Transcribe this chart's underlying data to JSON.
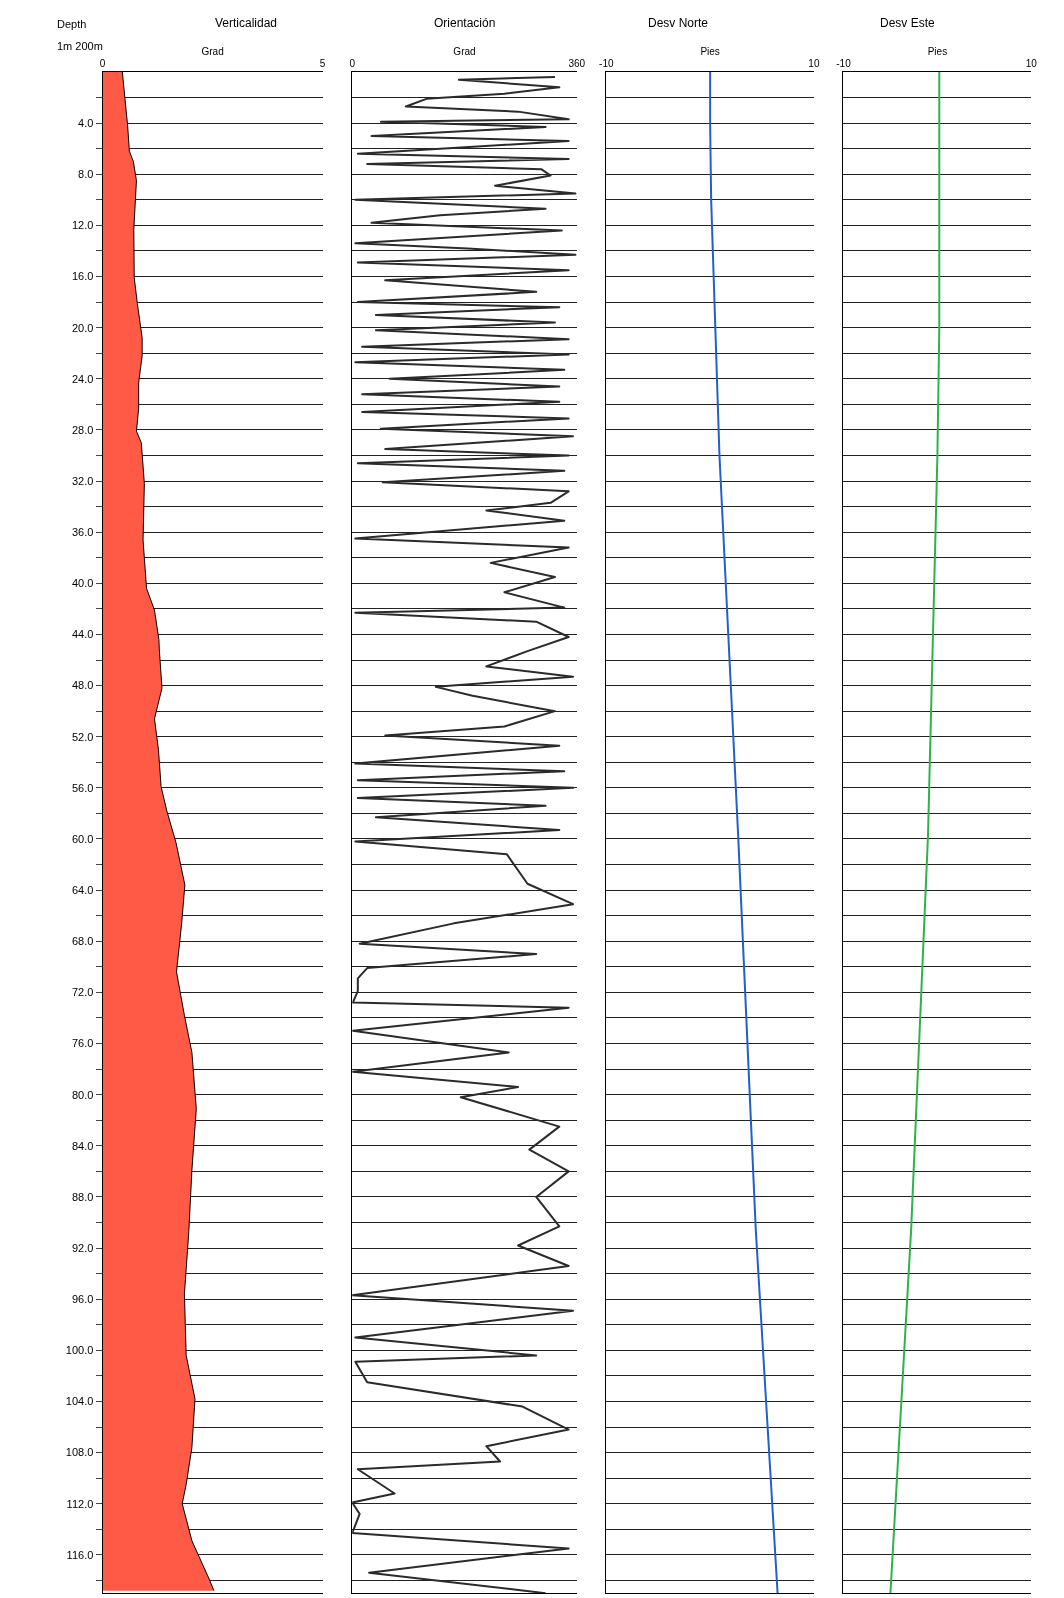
{
  "chart_data": [
    {
      "type": "area",
      "title": "Verticalidad",
      "xlabel": "Grad",
      "ylabel": "Depth",
      "annotations": [
        "1m 200m"
      ],
      "orientation": "horizontal",
      "color": "#ff5a46",
      "grid": "y",
      "xlim": [
        0,
        5
      ],
      "xticks": [
        0,
        5
      ],
      "ylim": [
        119,
        0
      ],
      "yticks": [
        {
          "value": 2,
          "label": null
        },
        {
          "value": 4,
          "label": "4.0"
        },
        {
          "value": 6,
          "label": null
        },
        {
          "value": 8,
          "label": "8.0"
        },
        {
          "value": 10,
          "label": null
        },
        {
          "value": 12,
          "label": "12.0"
        },
        {
          "value": 14,
          "label": null
        },
        {
          "value": 16,
          "label": "16.0"
        },
        {
          "value": 18,
          "label": null
        },
        {
          "value": 20,
          "label": "20.0"
        },
        {
          "value": 22,
          "label": null
        },
        {
          "value": 24,
          "label": "24.0"
        },
        {
          "value": 26,
          "label": null
        },
        {
          "value": 28,
          "label": "28.0"
        },
        {
          "value": 30,
          "label": null
        },
        {
          "value": 32,
          "label": "32.0"
        },
        {
          "value": 34,
          "label": null
        },
        {
          "value": 36,
          "label": "36.0"
        },
        {
          "value": 38,
          "label": null
        },
        {
          "value": 40,
          "label": "40.0"
        },
        {
          "value": 42,
          "label": null
        },
        {
          "value": 44,
          "label": "44.0"
        },
        {
          "value": 46,
          "label": null
        },
        {
          "value": 48,
          "label": "48.0"
        },
        {
          "value": 50,
          "label": null
        },
        {
          "value": 52,
          "label": "52.0"
        },
        {
          "value": 54,
          "label": null
        },
        {
          "value": 56,
          "label": "56.0"
        },
        {
          "value": 58,
          "label": null
        },
        {
          "value": 60,
          "label": "60.0"
        },
        {
          "value": 62,
          "label": null
        },
        {
          "value": 64,
          "label": "64.0"
        },
        {
          "value": 66,
          "label": null
        },
        {
          "value": 68,
          "label": "68.0"
        },
        {
          "value": 70,
          "label": null
        },
        {
          "value": 72,
          "label": "72.0"
        },
        {
          "value": 74,
          "label": null
        },
        {
          "value": 76,
          "label": "76.0"
        },
        {
          "value": 78,
          "label": null
        },
        {
          "value": 80,
          "label": "80.0"
        },
        {
          "value": 82,
          "label": null
        },
        {
          "value": 84,
          "label": "84.0"
        },
        {
          "value": 86,
          "label": null
        },
        {
          "value": 88,
          "label": "88.0"
        },
        {
          "value": 90,
          "label": null
        },
        {
          "value": 92,
          "label": "92.0"
        },
        {
          "value": 94,
          "label": null
        },
        {
          "value": 96,
          "label": "96.0"
        },
        {
          "value": 98,
          "label": null
        },
        {
          "value": 100,
          "label": "100.0"
        },
        {
          "value": 102,
          "label": null
        },
        {
          "value": 104,
          "label": "104.0"
        },
        {
          "value": 106,
          "label": null
        },
        {
          "value": 108,
          "label": "108.0"
        },
        {
          "value": 110,
          "label": null
        },
        {
          "value": 112,
          "label": "112.0"
        },
        {
          "value": 114,
          "label": null
        },
        {
          "value": 116,
          "label": "116.0"
        },
        {
          "value": 118,
          "label": null
        }
      ],
      "x": [
        0,
        4.2,
        6.2,
        7.0,
        8.5,
        12.3,
        16.1,
        18.1,
        20.8,
        22.2,
        24.3,
        26.3,
        28.1,
        29.0,
        32.2,
        36.6,
        40.4,
        42.1,
        44.4,
        45.2,
        48.2,
        50.6,
        53.0,
        55.9,
        57.8,
        60.3,
        63.6,
        66.5,
        70.4,
        73.8,
        76.7,
        81.1,
        85.9,
        90.7,
        95.6,
        100.4,
        103.8,
        107.6,
        110.5,
        112.0,
        114.9,
        117.8,
        118.8
      ],
      "values": [
        0.45,
        0.57,
        0.61,
        0.7,
        0.77,
        0.71,
        0.72,
        0.79,
        0.9,
        0.9,
        0.82,
        0.82,
        0.77,
        0.88,
        0.95,
        0.92,
        1.0,
        1.18,
        1.28,
        1.29,
        1.35,
        1.18,
        1.27,
        1.33,
        1.46,
        1.67,
        1.87,
        1.8,
        1.68,
        1.86,
        2.03,
        2.13,
        2.03,
        1.96,
        1.86,
        1.9,
        2.1,
        2.03,
        1.9,
        1.81,
        2.03,
        2.41,
        2.53
      ]
    },
    {
      "type": "line",
      "title": "Orientación",
      "xlabel": "Grad",
      "orientation": "horizontal",
      "color": "#2b2b2b",
      "grid": "y",
      "tick_labels": "x",
      "xlim": [
        0,
        360
      ],
      "xticks": [
        0,
        360
      ],
      "ylim": [
        119,
        0
      ],
      "yticks": [
        2,
        4,
        6,
        8,
        10,
        12,
        14,
        16,
        18,
        20,
        22,
        24,
        26,
        28,
        30,
        32,
        34,
        36,
        38,
        40,
        42,
        44,
        46,
        48,
        50,
        52,
        54,
        56,
        58,
        60,
        62,
        64,
        66,
        68,
        70,
        72,
        74,
        76,
        78,
        80,
        82,
        84,
        86,
        88,
        90,
        92,
        94,
        96,
        98,
        100,
        102,
        104,
        106,
        108,
        110,
        112,
        114,
        116,
        118
      ],
      "x": [
        0.4,
        0.6,
        1.2,
        1.7,
        2.1,
        2.7,
        3.1,
        3.7,
        3.9,
        4.3,
        5.0,
        5.4,
        6.0,
        6.4,
        6.8,
        7.2,
        7.6,
        8.1,
        8.9,
        9.5,
        10.0,
        10.7,
        11.2,
        11.8,
        12.4,
        13.4,
        13.8,
        14.3,
        14.9,
        15.5,
        16.3,
        17.2,
        18.0,
        18.4,
        19.0,
        19.6,
        20.2,
        20.9,
        21.5,
        22.1,
        22.7,
        23.3,
        24.0,
        24.6,
        25.2,
        25.8,
        26.6,
        27.1,
        27.9,
        28.5,
        29.5,
        30.0,
        30.6,
        31.2,
        32.1,
        32.8,
        33.7,
        34.3,
        35.1,
        36.5,
        37.2,
        38.4,
        39.5,
        40.7,
        41.9,
        42.3,
        43.0,
        44.2,
        45.3,
        46.5,
        47.3,
        48.1,
        48.8,
        50.0,
        51.2,
        51.9,
        52.7,
        54.1,
        54.7,
        55.4,
        56.0,
        56.8,
        57.4,
        58.3,
        59.3,
        60.2,
        61.2,
        63.5,
        65.1,
        66.6,
        68.2,
        69.0,
        70.1,
        70.9,
        71.9,
        72.8,
        73.2,
        75.0,
        76.7,
        78.2,
        79.4,
        80.2,
        82.5,
        84.3,
        86.0,
        88.0,
        90.3,
        91.8,
        93.4,
        95.7,
        96.9,
        99.0,
        100.4,
        100.9,
        102.5,
        104.4,
        106.2,
        107.5,
        108.7,
        109.3,
        111.2,
        111.9,
        112.8,
        114.3,
        115.5,
        117.4,
        119.0
      ],
      "values": [
        325,
        171,
        332,
        244,
        119,
        86,
        266,
        347,
        46,
        310,
        31,
        347,
        141,
        9,
        347,
        24,
        303,
        318,
        229,
        358,
        5,
        310,
        141,
        31,
        336,
        5,
        185,
        358,
        9,
        347,
        53,
        295,
        9,
        332,
        38,
        325,
        38,
        347,
        16,
        347,
        5,
        340,
        60,
        332,
        16,
        332,
        16,
        347,
        46,
        354,
        53,
        347,
        9,
        340,
        49,
        347,
        318,
        215,
        340,
        5,
        347,
        222,
        325,
        244,
        340,
        5,
        295,
        347,
        281,
        215,
        354,
        134,
        193,
        325,
        244,
        53,
        332,
        5,
        340,
        9,
        354,
        9,
        310,
        38,
        332,
        5,
        248,
        281,
        354,
        163,
        12,
        295,
        24,
        9,
        9,
        1,
        347,
        1,
        251,
        1,
        266,
        174,
        332,
        284,
        347,
        295,
        332,
        266,
        347,
        0,
        354,
        5,
        295,
        5,
        24,
        273,
        347,
        215,
        237,
        9,
        68,
        0,
        12,
        0,
        347,
        27,
        310
      ]
    },
    {
      "type": "line",
      "title": "Desv Norte",
      "xlabel": "Pies",
      "orientation": "horizontal",
      "color": "#1f5fd0",
      "grid": "y",
      "tick_labels": "x",
      "xlim": [
        -10,
        10
      ],
      "xticks": [
        -10,
        10
      ],
      "ylim": [
        119,
        0
      ],
      "yticks": [
        2,
        4,
        6,
        8,
        10,
        12,
        14,
        16,
        18,
        20,
        22,
        24,
        26,
        28,
        30,
        32,
        34,
        36,
        38,
        40,
        42,
        44,
        46,
        48,
        50,
        52,
        54,
        56,
        58,
        60,
        62,
        64,
        66,
        68,
        70,
        72,
        74,
        76,
        78,
        80,
        82,
        84,
        86,
        88,
        90,
        92,
        94,
        96,
        98,
        100,
        102,
        104,
        106,
        108,
        110,
        112,
        114,
        116,
        118
      ],
      "x": [
        0,
        4,
        10,
        30,
        59.7,
        90.6,
        119
      ],
      "values": [
        0.0,
        0.0,
        0.1,
        0.9,
        2.7,
        4.4,
        6.5
      ]
    },
    {
      "type": "line",
      "title": "Desv Este",
      "xlabel": "Pies",
      "orientation": "horizontal",
      "color": "#2db34a",
      "grid": "y",
      "tick_labels": "x",
      "xlim": [
        -10,
        10
      ],
      "xticks": [
        -10,
        10
      ],
      "ylim": [
        119,
        0
      ],
      "yticks": [
        2,
        4,
        6,
        8,
        10,
        12,
        14,
        16,
        18,
        20,
        22,
        24,
        26,
        28,
        30,
        32,
        34,
        36,
        38,
        40,
        42,
        44,
        46,
        48,
        50,
        52,
        54,
        56,
        58,
        60,
        62,
        64,
        66,
        68,
        70,
        72,
        74,
        76,
        78,
        80,
        82,
        84,
        86,
        88,
        90,
        92,
        94,
        96,
        98,
        100,
        102,
        104,
        106,
        108,
        110,
        112,
        114,
        116,
        118
      ],
      "x": [
        0,
        20,
        30,
        59.7,
        90.6,
        119
      ],
      "values": [
        0.2,
        0.2,
        0.0,
        -1.0,
        -2.8,
        -5.0
      ]
    }
  ]
}
